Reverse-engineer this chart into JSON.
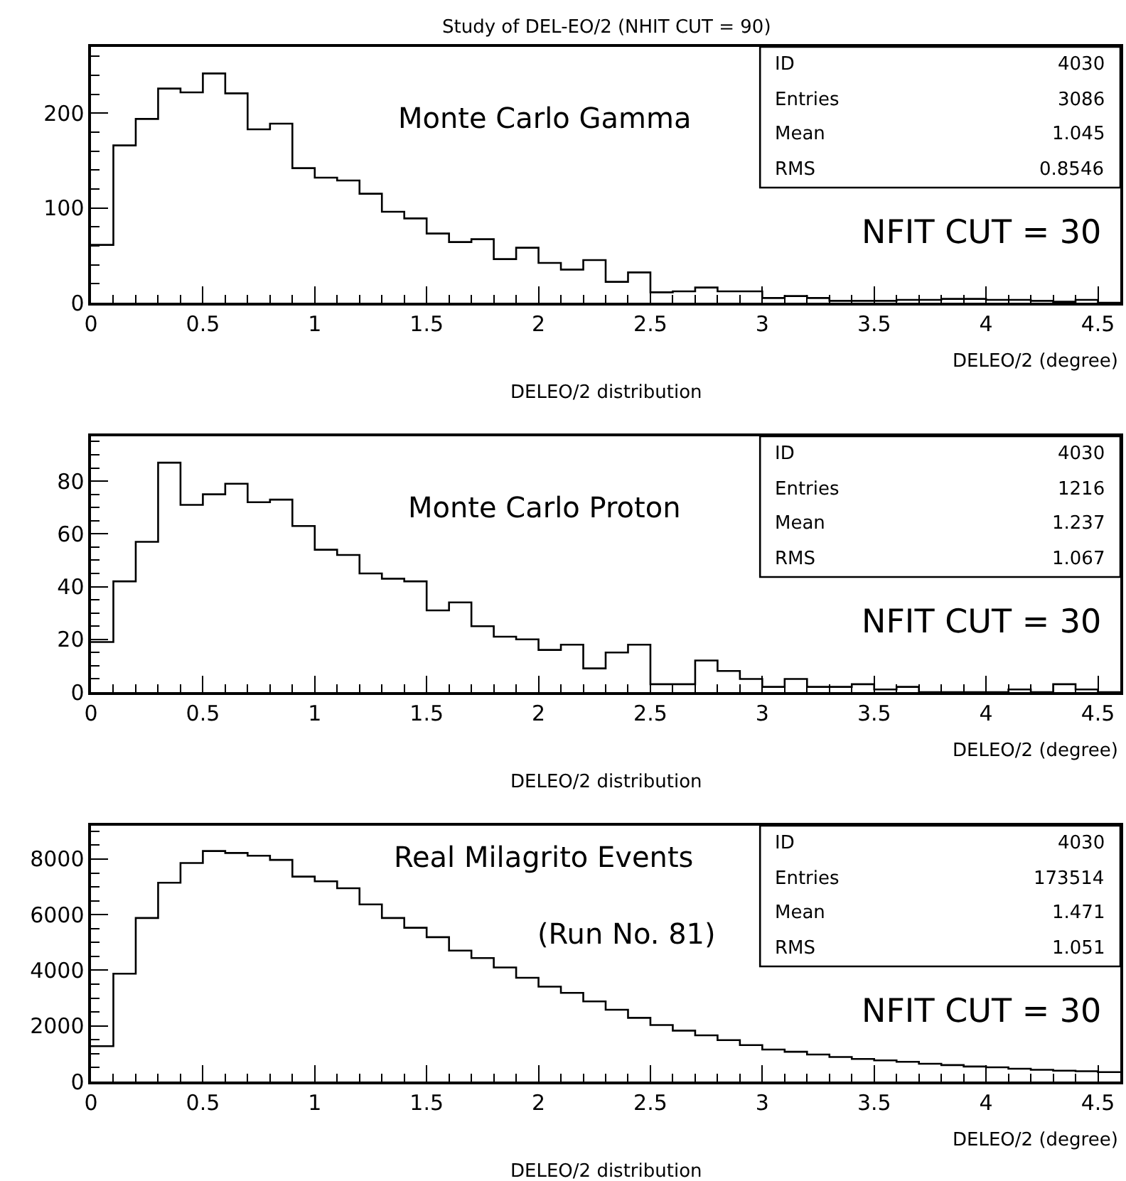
{
  "chart_data": [
    {
      "type": "histogram",
      "title": "Study of DEL-EO/2 (NHIT CUT = 90)",
      "xlabel": "DELEO/2 (degree)",
      "color": "#000000",
      "bins": [
        0,
        0.1,
        0.2,
        0.3,
        0.4,
        0.5,
        0.6,
        0.7,
        0.8,
        0.9,
        1.0,
        1.1,
        1.2,
        1.3,
        1.4,
        1.5,
        1.6,
        1.7,
        1.8,
        1.9,
        2.0,
        2.1,
        2.2,
        2.3,
        2.4,
        2.5,
        2.6,
        2.7,
        2.8,
        2.9,
        3.0,
        3.1,
        3.2,
        3.3,
        3.4,
        3.5,
        3.6,
        3.7,
        3.8,
        3.9,
        4.0,
        4.1,
        4.2,
        4.3,
        4.4,
        4.5,
        4.6
      ],
      "values": [
        61,
        166,
        194,
        226,
        222,
        242,
        221,
        183,
        189,
        142,
        132,
        129,
        115,
        96,
        89,
        73,
        64,
        67,
        46,
        58,
        42,
        35,
        45,
        22,
        32,
        11,
        12,
        16,
        12,
        12,
        5,
        7,
        5,
        2,
        2,
        2,
        3,
        3,
        4,
        4,
        3,
        3,
        2,
        1,
        3,
        0
      ],
      "xlim": [
        0,
        4.6
      ],
      "xticks": [
        0,
        {
          "value": 0.1,
          "label": null
        },
        {
          "value": 0.2,
          "label": null
        },
        {
          "value": 0.3,
          "label": null
        },
        {
          "value": 0.4,
          "label": null
        },
        0.5,
        {
          "value": 0.6,
          "label": null
        },
        {
          "value": 0.7,
          "label": null
        },
        {
          "value": 0.8,
          "label": null
        },
        {
          "value": 0.9,
          "label": null
        },
        1,
        {
          "value": 1.1,
          "label": null
        },
        {
          "value": 1.2,
          "label": null
        },
        {
          "value": 1.3,
          "label": null
        },
        {
          "value": 1.4,
          "label": null
        },
        1.5,
        {
          "value": 1.6,
          "label": null
        },
        {
          "value": 1.7,
          "label": null
        },
        {
          "value": 1.8,
          "label": null
        },
        {
          "value": 1.9,
          "label": null
        },
        2,
        {
          "value": 2.1,
          "label": null
        },
        {
          "value": 2.2,
          "label": null
        },
        {
          "value": 2.3,
          "label": null
        },
        {
          "value": 2.4,
          "label": null
        },
        2.5,
        {
          "value": 2.6,
          "label": null
        },
        {
          "value": 2.7,
          "label": null
        },
        {
          "value": 2.8,
          "label": null
        },
        {
          "value": 2.9,
          "label": null
        },
        3,
        {
          "value": 3.1,
          "label": null
        },
        {
          "value": 3.2,
          "label": null
        },
        {
          "value": 3.3,
          "label": null
        },
        {
          "value": 3.4,
          "label": null
        },
        3.5,
        {
          "value": 3.6,
          "label": null
        },
        {
          "value": 3.7,
          "label": null
        },
        {
          "value": 3.8,
          "label": null
        },
        {
          "value": 3.9,
          "label": null
        },
        4,
        {
          "value": 4.1,
          "label": null
        },
        {
          "value": 4.2,
          "label": null
        },
        {
          "value": 4.3,
          "label": null
        },
        {
          "value": 4.4,
          "label": null
        },
        4.5
      ],
      "ylim": [
        0,
        270
      ],
      "yticks": [
        0,
        {
          "value": 20,
          "label": null
        },
        {
          "value": 40,
          "label": null
        },
        {
          "value": 60,
          "label": null
        },
        {
          "value": 80,
          "label": null
        },
        100,
        {
          "value": 120,
          "label": null
        },
        {
          "value": 140,
          "label": null
        },
        {
          "value": 160,
          "label": null
        },
        {
          "value": 180,
          "label": null
        },
        200,
        {
          "value": 220,
          "label": null
        },
        {
          "value": 240,
          "label": null
        },
        {
          "value": 260,
          "label": null
        }
      ],
      "annotations": [
        "Monte Carlo Gamma",
        "ID",
        "4030",
        "Entries",
        "3086",
        "Mean",
        "1.045",
        "RMS",
        "0.8546",
        "NFIT CUT = 30",
        "DELEO/2 distribution"
      ]
    },
    {
      "type": "histogram",
      "xlabel": "DELEO/2 (degree)",
      "color": "#000000",
      "bins": [
        0,
        0.1,
        0.2,
        0.3,
        0.4,
        0.5,
        0.6,
        0.7,
        0.8,
        0.9,
        1.0,
        1.1,
        1.2,
        1.3,
        1.4,
        1.5,
        1.6,
        1.7,
        1.8,
        1.9,
        2.0,
        2.1,
        2.2,
        2.3,
        2.4,
        2.5,
        2.6,
        2.7,
        2.8,
        2.9,
        3.0,
        3.1,
        3.2,
        3.3,
        3.4,
        3.5,
        3.6,
        3.7,
        3.8,
        3.9,
        4.0,
        4.1,
        4.2,
        4.3,
        4.4,
        4.5,
        4.6
      ],
      "values": [
        19,
        42,
        57,
        87,
        71,
        75,
        79,
        72,
        73,
        63,
        54,
        52,
        45,
        43,
        42,
        31,
        34,
        25,
        21,
        20,
        16,
        18,
        9,
        15,
        18,
        3,
        3,
        12,
        8,
        5,
        2,
        5,
        2,
        2,
        3,
        1,
        2,
        0,
        0,
        0,
        0,
        1,
        0,
        3,
        1,
        0
      ],
      "xlim": [
        0,
        4.6
      ],
      "xticks": [
        0,
        {
          "value": 0.1,
          "label": null
        },
        {
          "value": 0.2,
          "label": null
        },
        {
          "value": 0.3,
          "label": null
        },
        {
          "value": 0.4,
          "label": null
        },
        0.5,
        {
          "value": 0.6,
          "label": null
        },
        {
          "value": 0.7,
          "label": null
        },
        {
          "value": 0.8,
          "label": null
        },
        {
          "value": 0.9,
          "label": null
        },
        1,
        {
          "value": 1.1,
          "label": null
        },
        {
          "value": 1.2,
          "label": null
        },
        {
          "value": 1.3,
          "label": null
        },
        {
          "value": 1.4,
          "label": null
        },
        1.5,
        {
          "value": 1.6,
          "label": null
        },
        {
          "value": 1.7,
          "label": null
        },
        {
          "value": 1.8,
          "label": null
        },
        {
          "value": 1.9,
          "label": null
        },
        2,
        {
          "value": 2.1,
          "label": null
        },
        {
          "value": 2.2,
          "label": null
        },
        {
          "value": 2.3,
          "label": null
        },
        {
          "value": 2.4,
          "label": null
        },
        2.5,
        {
          "value": 2.6,
          "label": null
        },
        {
          "value": 2.7,
          "label": null
        },
        {
          "value": 2.8,
          "label": null
        },
        {
          "value": 2.9,
          "label": null
        },
        3,
        {
          "value": 3.1,
          "label": null
        },
        {
          "value": 3.2,
          "label": null
        },
        {
          "value": 3.3,
          "label": null
        },
        {
          "value": 3.4,
          "label": null
        },
        3.5,
        {
          "value": 3.6,
          "label": null
        },
        {
          "value": 3.7,
          "label": null
        },
        {
          "value": 3.8,
          "label": null
        },
        {
          "value": 3.9,
          "label": null
        },
        4,
        {
          "value": 4.1,
          "label": null
        },
        {
          "value": 4.2,
          "label": null
        },
        {
          "value": 4.3,
          "label": null
        },
        {
          "value": 4.4,
          "label": null
        },
        4.5
      ],
      "ylim": [
        0,
        97
      ],
      "yticks": [
        0,
        {
          "value": 5,
          "label": null
        },
        {
          "value": 10,
          "label": null
        },
        {
          "value": 15,
          "label": null
        },
        20,
        {
          "value": 25,
          "label": null
        },
        {
          "value": 30,
          "label": null
        },
        {
          "value": 35,
          "label": null
        },
        40,
        {
          "value": 45,
          "label": null
        },
        {
          "value": 50,
          "label": null
        },
        {
          "value": 55,
          "label": null
        },
        60,
        {
          "value": 65,
          "label": null
        },
        {
          "value": 70,
          "label": null
        },
        {
          "value": 75,
          "label": null
        },
        80,
        {
          "value": 85,
          "label": null
        },
        {
          "value": 90,
          "label": null
        },
        {
          "value": 95,
          "label": null
        }
      ],
      "annotations": [
        "Monte Carlo Proton",
        "ID",
        "4030",
        "Entries",
        "1216",
        "Mean",
        "1.237",
        "RMS",
        "1.067",
        "NFIT CUT = 30",
        "DELEO/2 distribution"
      ]
    },
    {
      "type": "histogram",
      "xlabel": "DELEO/2 (degree)",
      "color": "#000000",
      "bins": [
        0,
        0.1,
        0.2,
        0.3,
        0.4,
        0.5,
        0.6,
        0.7,
        0.8,
        0.9,
        1.0,
        1.1,
        1.2,
        1.3,
        1.4,
        1.5,
        1.6,
        1.7,
        1.8,
        1.9,
        2.0,
        2.1,
        2.2,
        2.3,
        2.4,
        2.5,
        2.6,
        2.7,
        2.8,
        2.9,
        3.0,
        3.1,
        3.2,
        3.3,
        3.4,
        3.5,
        3.6,
        3.7,
        3.8,
        3.9,
        4.0,
        4.1,
        4.2,
        4.3,
        4.4,
        4.5,
        4.6
      ],
      "values": [
        1270,
        3880,
        5880,
        7150,
        7860,
        8290,
        8220,
        8120,
        7970,
        7370,
        7200,
        6950,
        6370,
        5880,
        5530,
        5190,
        4710,
        4440,
        4100,
        3730,
        3410,
        3190,
        2880,
        2580,
        2290,
        2030,
        1830,
        1660,
        1490,
        1310,
        1150,
        1070,
        970,
        880,
        810,
        760,
        710,
        640,
        590,
        540,
        510,
        460,
        420,
        390,
        370,
        340
      ],
      "xlim": [
        0,
        4.6
      ],
      "xticks": [
        0,
        {
          "value": 0.1,
          "label": null
        },
        {
          "value": 0.2,
          "label": null
        },
        {
          "value": 0.3,
          "label": null
        },
        {
          "value": 0.4,
          "label": null
        },
        0.5,
        {
          "value": 0.6,
          "label": null
        },
        {
          "value": 0.7,
          "label": null
        },
        {
          "value": 0.8,
          "label": null
        },
        {
          "value": 0.9,
          "label": null
        },
        1,
        {
          "value": 1.1,
          "label": null
        },
        {
          "value": 1.2,
          "label": null
        },
        {
          "value": 1.3,
          "label": null
        },
        {
          "value": 1.4,
          "label": null
        },
        1.5,
        {
          "value": 1.6,
          "label": null
        },
        {
          "value": 1.7,
          "label": null
        },
        {
          "value": 1.8,
          "label": null
        },
        {
          "value": 1.9,
          "label": null
        },
        2,
        {
          "value": 2.1,
          "label": null
        },
        {
          "value": 2.2,
          "label": null
        },
        {
          "value": 2.3,
          "label": null
        },
        {
          "value": 2.4,
          "label": null
        },
        2.5,
        {
          "value": 2.6,
          "label": null
        },
        {
          "value": 2.7,
          "label": null
        },
        {
          "value": 2.8,
          "label": null
        },
        {
          "value": 2.9,
          "label": null
        },
        3,
        {
          "value": 3.1,
          "label": null
        },
        {
          "value": 3.2,
          "label": null
        },
        {
          "value": 3.3,
          "label": null
        },
        {
          "value": 3.4,
          "label": null
        },
        3.5,
        {
          "value": 3.6,
          "label": null
        },
        {
          "value": 3.7,
          "label": null
        },
        {
          "value": 3.8,
          "label": null
        },
        {
          "value": 3.9,
          "label": null
        },
        4,
        {
          "value": 4.1,
          "label": null
        },
        {
          "value": 4.2,
          "label": null
        },
        {
          "value": 4.3,
          "label": null
        },
        {
          "value": 4.4,
          "label": null
        },
        4.5
      ],
      "ylim": [
        0,
        9200
      ],
      "yticks": [
        0,
        {
          "value": 500,
          "label": null
        },
        {
          "value": 1000,
          "label": null
        },
        {
          "value": 1500,
          "label": null
        },
        2000,
        {
          "value": 2500,
          "label": null
        },
        {
          "value": 3000,
          "label": null
        },
        {
          "value": 3500,
          "label": null
        },
        4000,
        {
          "value": 4500,
          "label": null
        },
        {
          "value": 5000,
          "label": null
        },
        {
          "value": 5500,
          "label": null
        },
        6000,
        {
          "value": 6500,
          "label": null
        },
        {
          "value": 7000,
          "label": null
        },
        {
          "value": 7500,
          "label": null
        },
        8000,
        {
          "value": 8500,
          "label": null
        },
        {
          "value": 9000,
          "label": null
        }
      ],
      "annotations": [
        "Real Milagrito Events",
        "(Run No. 81)",
        "ID",
        "4030",
        "Entries",
        "173514",
        "Mean",
        "1.471",
        "RMS",
        "1.051",
        "NFIT CUT = 30",
        "DELEO/2 distribution"
      ]
    }
  ]
}
